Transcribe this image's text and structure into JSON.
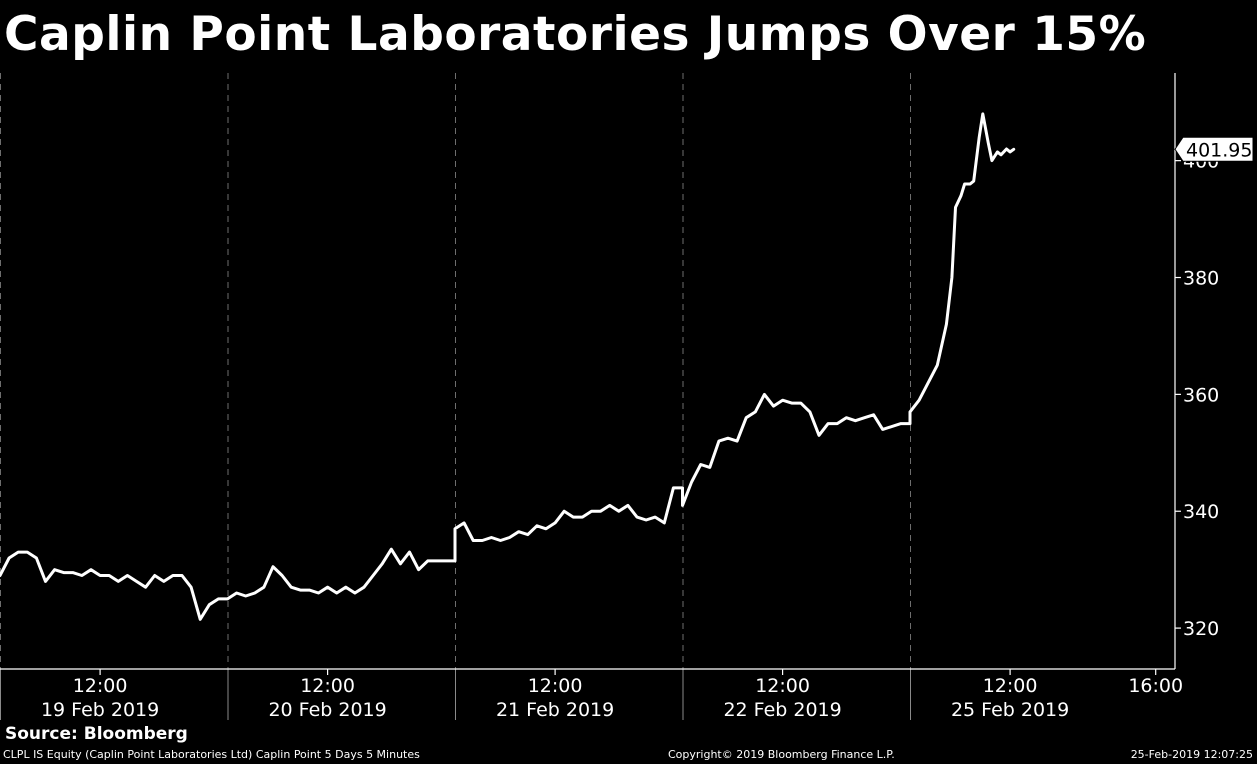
{
  "title": "Caplin Point Laboratories Jumps Over 15%",
  "source": "Source: Bloomberg",
  "footer": {
    "left": "CLPL IS Equity (Caplin Point Laboratories Ltd) Caplin Point 5 Days 5 Minutes",
    "center": "Copyright© 2019 Bloomberg Finance L.P.",
    "right": "25-Feb-2019 12:07:25"
  },
  "colors": {
    "background": "#000000",
    "line": "#ffffff",
    "text": "#ffffff",
    "grid": "#6e6e6e"
  },
  "chart_data": {
    "type": "line",
    "title": "Caplin Point Laboratories Jumps Over 15%",
    "xlabel": "",
    "ylabel": "",
    "grid": "vertical dashed lines at day boundaries",
    "y_axis_position": "right",
    "ylim": [
      313,
      415
    ],
    "y_ticks": [
      320,
      340,
      360,
      380,
      400
    ],
    "last_value_label": "401.95",
    "days": [
      {
        "date": "19 Feb 2019",
        "tick": "12:00"
      },
      {
        "date": "20 Feb 2019",
        "tick": "12:00"
      },
      {
        "date": "21 Feb 2019",
        "tick": "12:00"
      },
      {
        "date": "22 Feb 2019",
        "tick": "12:00"
      },
      {
        "date": "25 Feb 2019",
        "tick": "12:00"
      }
    ],
    "extra_ticks": [
      {
        "label": "16:00",
        "day": 4,
        "hour": 16
      }
    ],
    "series": [
      {
        "values": [
          [
            0,
            9.25,
            329
          ],
          [
            0,
            9.5,
            332
          ],
          [
            0,
            9.75,
            333
          ],
          [
            0,
            10.0,
            333
          ],
          [
            0,
            10.25,
            332
          ],
          [
            0,
            10.5,
            328
          ],
          [
            0,
            10.75,
            330
          ],
          [
            0,
            11.0,
            329.5
          ],
          [
            0,
            11.25,
            329.5
          ],
          [
            0,
            11.5,
            329
          ],
          [
            0,
            11.75,
            330
          ],
          [
            0,
            12.0,
            329
          ],
          [
            0,
            12.25,
            329
          ],
          [
            0,
            12.5,
            328
          ],
          [
            0,
            12.75,
            329
          ],
          [
            0,
            13.0,
            328
          ],
          [
            0,
            13.25,
            327
          ],
          [
            0,
            13.5,
            329
          ],
          [
            0,
            13.75,
            328
          ],
          [
            0,
            14.0,
            329
          ],
          [
            0,
            14.25,
            329
          ],
          [
            0,
            14.5,
            327
          ],
          [
            0,
            14.75,
            321.5
          ],
          [
            0,
            15.0,
            324
          ],
          [
            0,
            15.25,
            325
          ],
          [
            0,
            15.5,
            325
          ],
          [
            1,
            9.25,
            325
          ],
          [
            1,
            9.5,
            326
          ],
          [
            1,
            9.75,
            325.5
          ],
          [
            1,
            10.0,
            326
          ],
          [
            1,
            10.25,
            327
          ],
          [
            1,
            10.5,
            330.5
          ],
          [
            1,
            10.75,
            329
          ],
          [
            1,
            11.0,
            327
          ],
          [
            1,
            11.25,
            326.5
          ],
          [
            1,
            11.5,
            326.5
          ],
          [
            1,
            11.75,
            326
          ],
          [
            1,
            12.0,
            327
          ],
          [
            1,
            12.25,
            326
          ],
          [
            1,
            12.5,
            327
          ],
          [
            1,
            12.75,
            326
          ],
          [
            1,
            13.0,
            327
          ],
          [
            1,
            13.25,
            329
          ],
          [
            1,
            13.5,
            331
          ],
          [
            1,
            13.75,
            333.5
          ],
          [
            1,
            14.0,
            331
          ],
          [
            1,
            14.25,
            333
          ],
          [
            1,
            14.5,
            330
          ],
          [
            1,
            14.75,
            331.5
          ],
          [
            1,
            15.0,
            331.5
          ],
          [
            1,
            15.5,
            331.5
          ],
          [
            2,
            9.25,
            337
          ],
          [
            2,
            9.5,
            338
          ],
          [
            2,
            9.75,
            335
          ],
          [
            2,
            10.0,
            335
          ],
          [
            2,
            10.25,
            335.5
          ],
          [
            2,
            10.5,
            335
          ],
          [
            2,
            10.75,
            335.5
          ],
          [
            2,
            11.0,
            336.5
          ],
          [
            2,
            11.25,
            336
          ],
          [
            2,
            11.5,
            337.5
          ],
          [
            2,
            11.75,
            337
          ],
          [
            2,
            12.0,
            338
          ],
          [
            2,
            12.25,
            340
          ],
          [
            2,
            12.5,
            339
          ],
          [
            2,
            12.75,
            339
          ],
          [
            2,
            13.0,
            340
          ],
          [
            2,
            13.25,
            340
          ],
          [
            2,
            13.5,
            341
          ],
          [
            2,
            13.75,
            340
          ],
          [
            2,
            14.0,
            341
          ],
          [
            2,
            14.25,
            339
          ],
          [
            2,
            14.5,
            338.5
          ],
          [
            2,
            14.75,
            339
          ],
          [
            2,
            15.0,
            338
          ],
          [
            2,
            15.25,
            344
          ],
          [
            2,
            15.5,
            344
          ],
          [
            3,
            9.25,
            341
          ],
          [
            3,
            9.5,
            345
          ],
          [
            3,
            9.75,
            348
          ],
          [
            3,
            10.0,
            347.5
          ],
          [
            3,
            10.25,
            352
          ],
          [
            3,
            10.5,
            352.5
          ],
          [
            3,
            10.75,
            352
          ],
          [
            3,
            11.0,
            356
          ],
          [
            3,
            11.25,
            357
          ],
          [
            3,
            11.5,
            360
          ],
          [
            3,
            11.75,
            358
          ],
          [
            3,
            12.0,
            359
          ],
          [
            3,
            12.25,
            358.5
          ],
          [
            3,
            12.5,
            358.5
          ],
          [
            3,
            12.75,
            357
          ],
          [
            3,
            13.0,
            353
          ],
          [
            3,
            13.25,
            355
          ],
          [
            3,
            13.5,
            355
          ],
          [
            3,
            13.75,
            356
          ],
          [
            3,
            14.0,
            355.5
          ],
          [
            3,
            14.25,
            356
          ],
          [
            3,
            14.5,
            356.5
          ],
          [
            3,
            14.75,
            354
          ],
          [
            3,
            15.25,
            355
          ],
          [
            3,
            15.5,
            355
          ],
          [
            4,
            9.25,
            357
          ],
          [
            4,
            9.5,
            359
          ],
          [
            4,
            9.75,
            362
          ],
          [
            4,
            10.0,
            365
          ],
          [
            4,
            10.25,
            372
          ],
          [
            4,
            10.4,
            380
          ],
          [
            4,
            10.5,
            392
          ],
          [
            4,
            10.65,
            394
          ],
          [
            4,
            10.75,
            396
          ],
          [
            4,
            10.9,
            396
          ],
          [
            4,
            11.0,
            396.5
          ],
          [
            4,
            11.15,
            404
          ],
          [
            4,
            11.25,
            408
          ],
          [
            4,
            11.4,
            403
          ],
          [
            4,
            11.5,
            400
          ],
          [
            4,
            11.65,
            401.5
          ],
          [
            4,
            11.75,
            401
          ],
          [
            4,
            11.9,
            402
          ],
          [
            4,
            12.0,
            401.5
          ],
          [
            4,
            12.1,
            401.95
          ]
        ]
      }
    ]
  }
}
